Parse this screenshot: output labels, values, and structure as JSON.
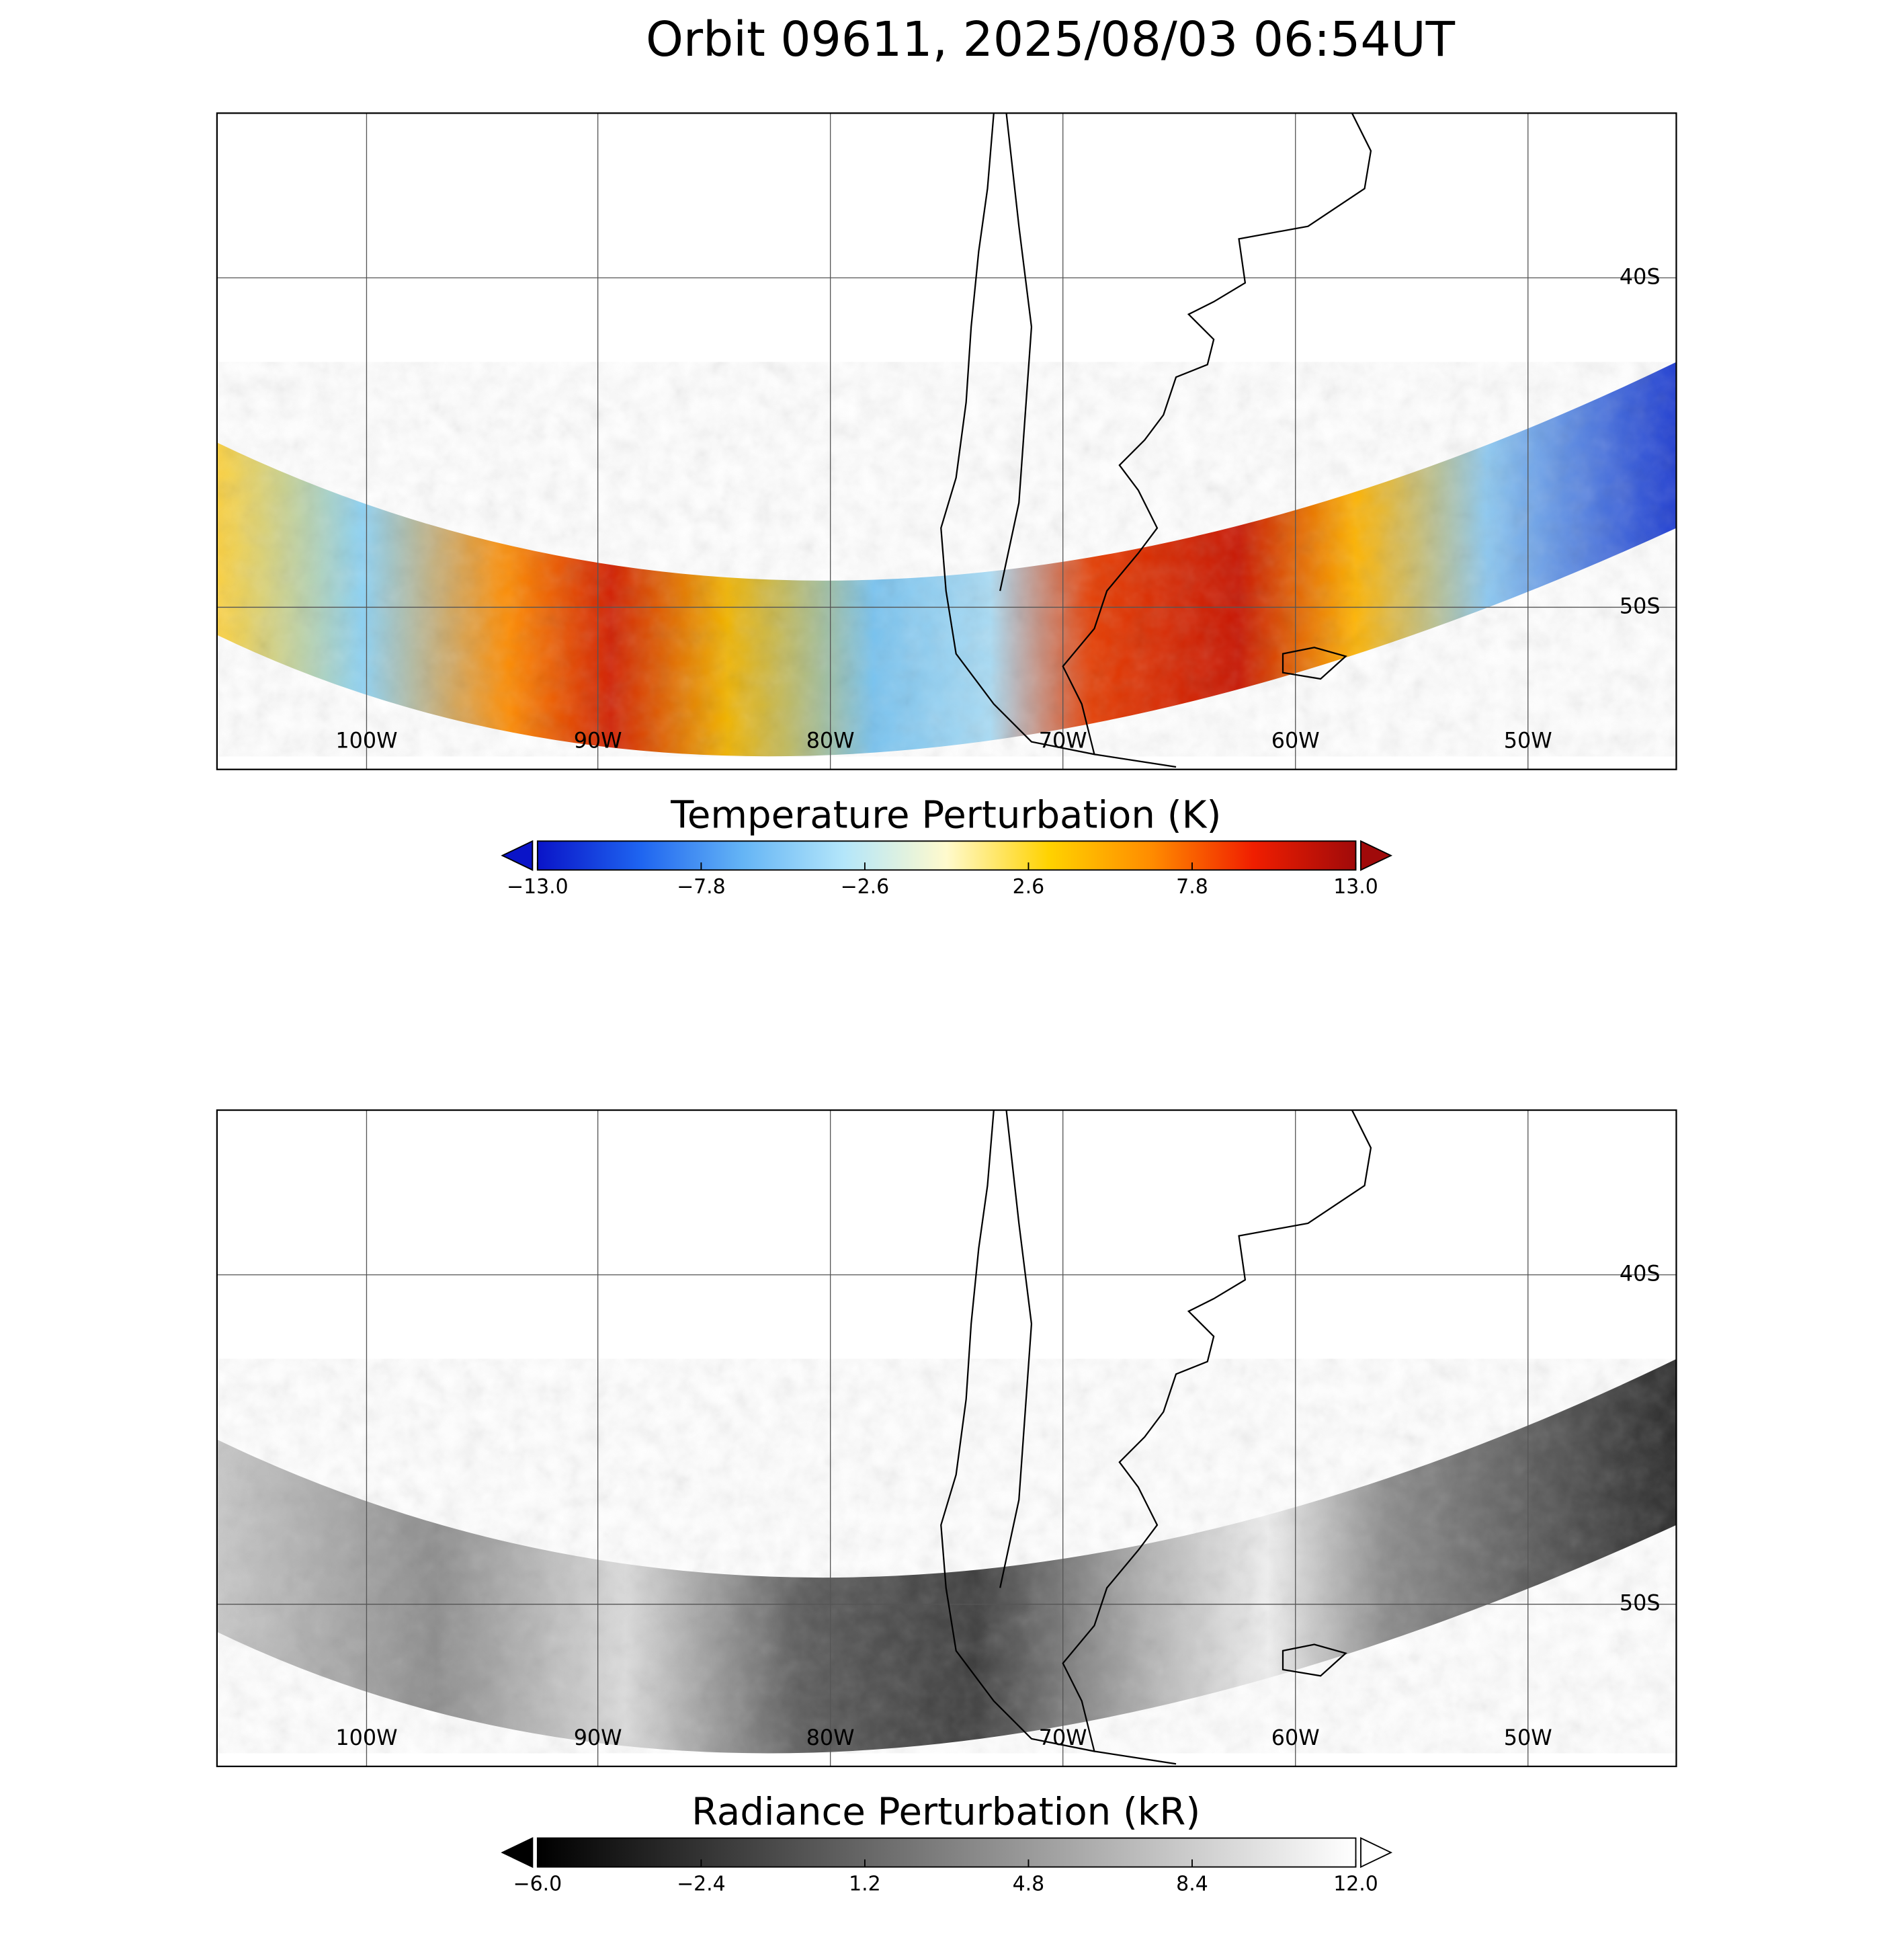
{
  "title": "Orbit 09611, 2025/08/03 06:54UT",
  "panels": [
    {
      "lon_labels": [
        "100W",
        "90W",
        "80W",
        "70W",
        "60W",
        "50W"
      ],
      "lat_labels": [
        "40S",
        "50S"
      ],
      "colorbar": {
        "title": "Temperature Perturbation (K)",
        "lim": [
          -13,
          13
        ],
        "ticks": [
          {
            "value": -13,
            "label": "−13.0"
          },
          {
            "value": -7.8,
            "label": "−7.8"
          },
          {
            "value": -2.6,
            "label": "−2.6"
          },
          2.6,
          7.8,
          {
            "value": 13,
            "label": "13.0"
          }
        ],
        "colors": [
          "#0a14c8",
          "#1e64f0",
          "#64b4f5",
          "#b4e6fa",
          "#fffacd",
          "#ffd200",
          "#ff8c00",
          "#f01e00",
          "#a00a0a"
        ]
      }
    },
    {
      "lon_labels": [
        "100W",
        "90W",
        "80W",
        "70W",
        "60W",
        "50W"
      ],
      "lat_labels": [
        "40S",
        "50S"
      ],
      "colorbar": {
        "title": "Radiance Perturbation (kR)",
        "lim": [
          -6,
          12
        ],
        "ticks": [
          {
            "value": -6,
            "label": "−6.0"
          },
          {
            "value": -2.4,
            "label": "−2.4"
          },
          1.2,
          4.8,
          8.4,
          {
            "value": 12,
            "label": "12.0"
          }
        ],
        "colors": [
          "#000000",
          "#404040",
          "#808080",
          "#c0c0c0",
          "#ffffff"
        ]
      }
    }
  ]
}
